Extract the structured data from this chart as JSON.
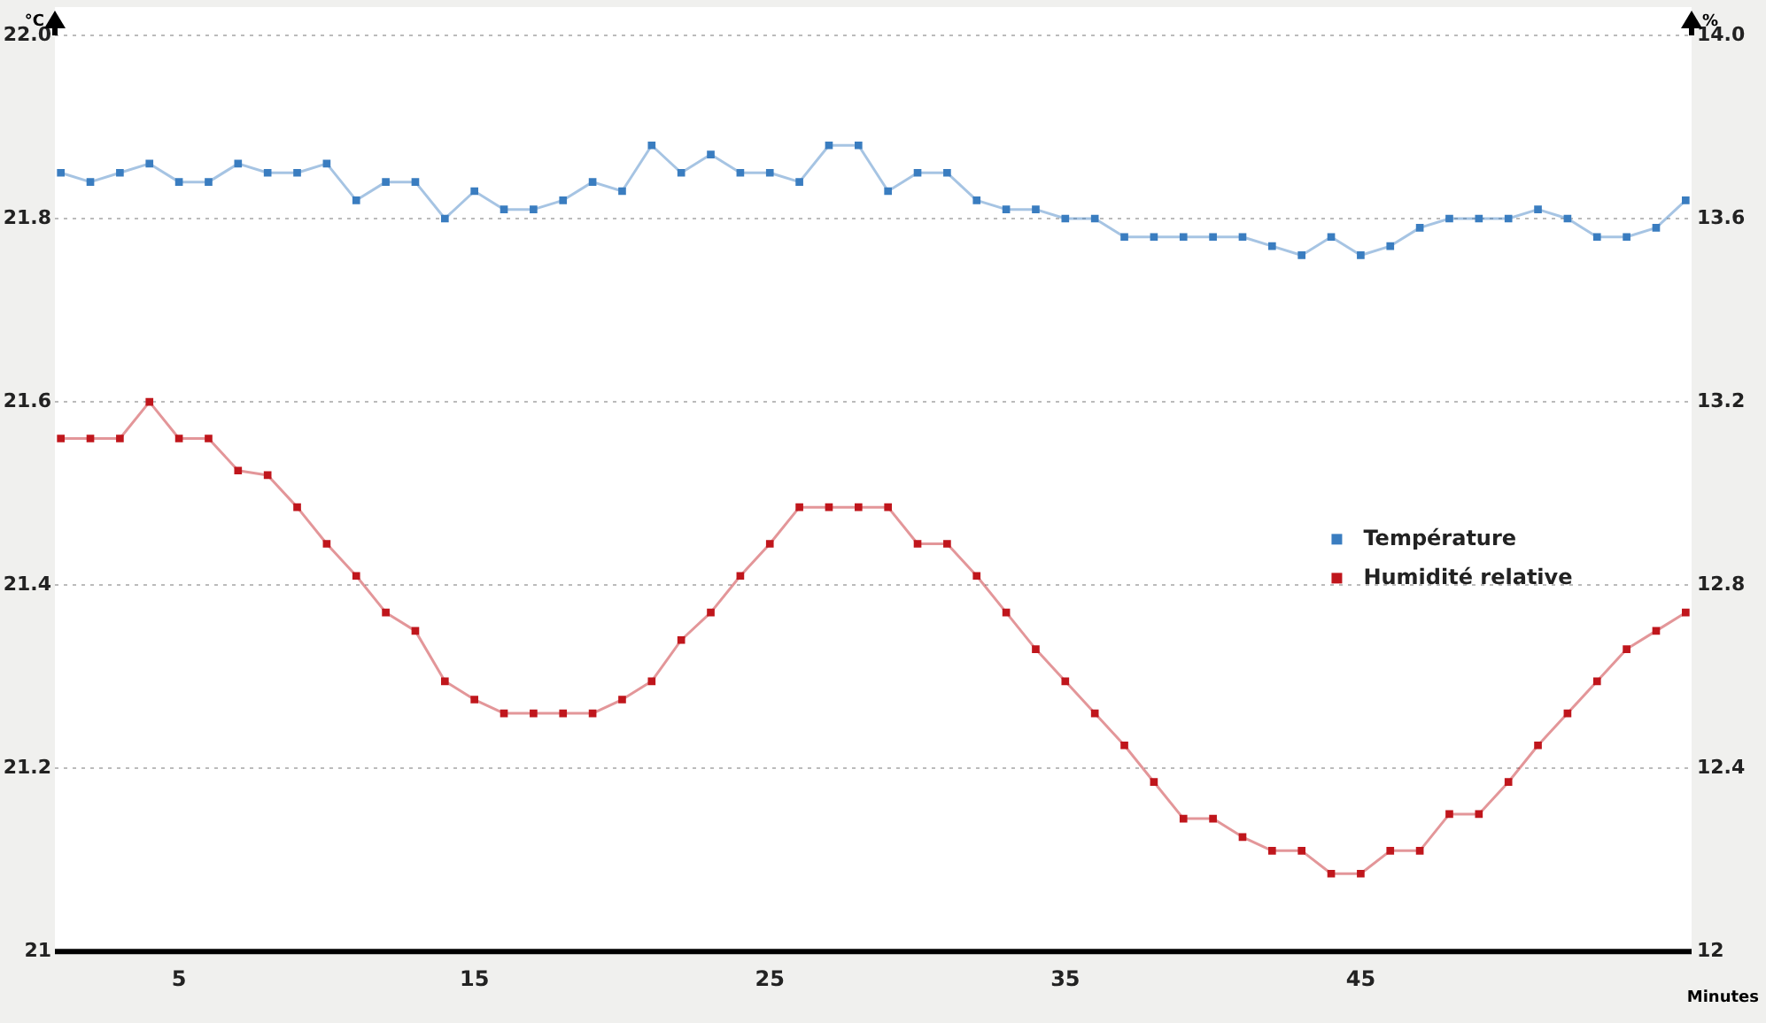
{
  "chart_data": {
    "type": "line",
    "ylabel": "°C",
    "y2label": "%",
    "xlabel": "Minutes",
    "x": [
      1,
      2,
      3,
      4,
      5,
      6,
      7,
      8,
      9,
      10,
      11,
      12,
      13,
      14,
      15,
      16,
      17,
      18,
      19,
      20,
      21,
      22,
      23,
      24,
      25,
      26,
      27,
      28,
      29,
      30,
      31,
      32,
      33,
      34,
      35,
      36,
      37,
      38,
      39,
      40,
      41,
      42,
      43,
      44,
      45,
      46,
      47,
      48,
      49,
      50,
      51,
      52,
      53,
      54,
      55,
      56
    ],
    "series": [
      {
        "name": "Température",
        "color": "#3a7dc0",
        "values": [
          21.85,
          21.84,
          21.85,
          21.86,
          21.84,
          21.84,
          21.86,
          21.85,
          21.85,
          21.86,
          21.82,
          21.84,
          21.84,
          21.8,
          21.83,
          21.81,
          21.81,
          21.82,
          21.84,
          21.83,
          21.88,
          21.85,
          21.87,
          21.85,
          21.85,
          21.84,
          21.88,
          21.88,
          21.83,
          21.85,
          21.85,
          21.82,
          21.81,
          21.81,
          21.8,
          21.8,
          21.78,
          21.78,
          21.78,
          21.78,
          21.78,
          21.77,
          21.76,
          21.78,
          21.76,
          21.77,
          21.79,
          21.8,
          21.8,
          21.8,
          21.81,
          21.8,
          21.78,
          21.78,
          21.79,
          21.82
        ]
      },
      {
        "name": "Humidité relative",
        "color": "#c0161c",
        "axis": "y2",
        "values": [
          13.12,
          13.12,
          13.12,
          13.2,
          13.12,
          13.12,
          13.05,
          13.04,
          12.97,
          12.89,
          12.82,
          12.74,
          12.7,
          12.59,
          12.55,
          12.52,
          12.52,
          12.52,
          12.52,
          12.55,
          12.59,
          12.68,
          12.74,
          12.82,
          12.89,
          12.97,
          12.97,
          12.97,
          12.97,
          12.89,
          12.89,
          12.82,
          12.74,
          12.66,
          12.59,
          12.52,
          12.45,
          12.37,
          12.29,
          12.29,
          12.25,
          12.22,
          12.22,
          12.17,
          12.17,
          12.22,
          12.22,
          12.3,
          12.3,
          12.37,
          12.45,
          12.52,
          12.59,
          12.66,
          12.7,
          12.74
        ]
      }
    ],
    "xlim": [
      0.8,
      56.2
    ],
    "xticks": [
      5,
      15,
      25,
      35,
      45
    ],
    "ylim": [
      21,
      22
    ],
    "yticks": [
      {
        "value": 21,
        "label": "21"
      },
      21.2,
      21.4,
      21.6,
      21.8,
      {
        "value": 22,
        "label": "22.0"
      }
    ],
    "y2lim": [
      12,
      14
    ],
    "y2ticks": [
      {
        "value": 12,
        "label": "12"
      },
      12.4,
      12.8,
      13.2,
      13.6,
      {
        "value": 14,
        "label": "14.0"
      }
    ],
    "grid": "y",
    "legend": "right",
    "marker": "square",
    "line_style": "solid"
  }
}
